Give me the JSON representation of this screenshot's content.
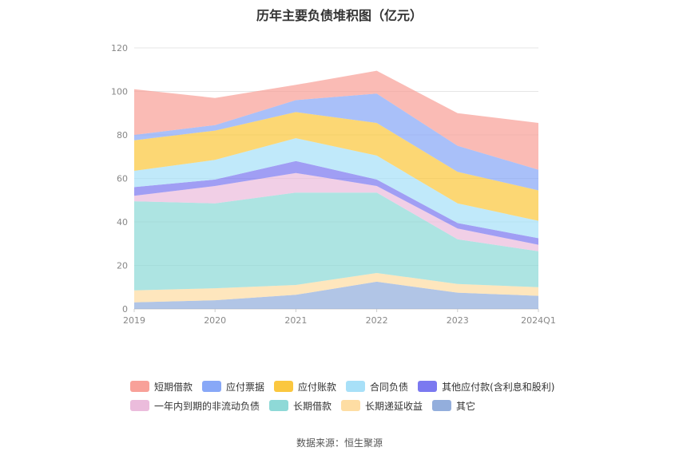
{
  "title": "历年主要负债堆积图（亿元）",
  "source": "数据来源：恒生聚源",
  "chart_data": {
    "type": "area",
    "stacked": true,
    "x": [
      "2019",
      "2020",
      "2021",
      "2022",
      "2023",
      "2024Q1"
    ],
    "ylim": [
      0,
      120
    ],
    "yticks": [
      "0",
      "20",
      "40",
      "60",
      "80",
      "100",
      "120"
    ],
    "grid": true,
    "legend_position": "bottom",
    "series": [
      {
        "name": "其它",
        "color": "#93aedc",
        "values": [
          3,
          4,
          6.5,
          12.5,
          7.5,
          6
        ]
      },
      {
        "name": "长期递延收益",
        "color": "#fedda3",
        "values": [
          5.5,
          5.5,
          4.5,
          4,
          4,
          4
        ]
      },
      {
        "name": "长期借款",
        "color": "#8ed9d7",
        "values": [
          41,
          39,
          42.5,
          37,
          20.5,
          16.5
        ]
      },
      {
        "name": "一年内到期的非流动负债",
        "color": "#ebbcdc",
        "values": [
          2.5,
          8,
          9,
          3,
          5,
          3
        ]
      },
      {
        "name": "其他应付款(含利息和股利)",
        "color": "#7b79f0",
        "values": [
          4,
          3,
          5.5,
          3,
          2.5,
          3
        ]
      },
      {
        "name": "合同负债",
        "color": "#a8e0f8",
        "values": [
          7.5,
          9,
          10.5,
          11,
          9,
          8
        ]
      },
      {
        "name": "应付账款",
        "color": "#fbc73f",
        "values": [
          14,
          13.5,
          12,
          15,
          14.5,
          14
        ]
      },
      {
        "name": "应付票据",
        "color": "#88a8f7",
        "values": [
          2.5,
          2.5,
          5.5,
          13.5,
          12,
          9.5
        ]
      },
      {
        "name": "短期借款",
        "color": "#f8a199",
        "values": [
          21,
          12.5,
          7,
          10.5,
          15,
          21.5
        ]
      }
    ]
  },
  "legend_rows": [
    [
      {
        "label": "短期借款",
        "color": "#f8a199"
      },
      {
        "label": "应付票据",
        "color": "#88a8f7"
      },
      {
        "label": "应付账款",
        "color": "#fbc73f"
      },
      {
        "label": "合同负债",
        "color": "#a8e0f8"
      },
      {
        "label": "其他应付款(含利息和股利)",
        "color": "#7b79f0"
      }
    ],
    [
      {
        "label": "一年内到期的非流动负债",
        "color": "#ebbcdc"
      },
      {
        "label": "长期借款",
        "color": "#8ed9d7"
      },
      {
        "label": "长期递延收益",
        "color": "#fedda3"
      },
      {
        "label": "其它",
        "color": "#93aedc"
      }
    ]
  ]
}
